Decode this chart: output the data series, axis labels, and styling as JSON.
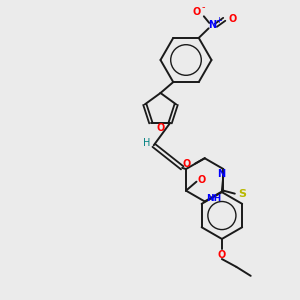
{
  "bg_color": "#ebebeb",
  "bond_color": "#1a1a1a",
  "N_color": "#0000ff",
  "O_color": "#ff0000",
  "S_color": "#b8b800",
  "H_color": "#008080",
  "figsize": [
    3.0,
    3.0
  ],
  "dpi": 100,
  "xlim": [
    0,
    10
  ],
  "ylim": [
    0,
    10
  ]
}
